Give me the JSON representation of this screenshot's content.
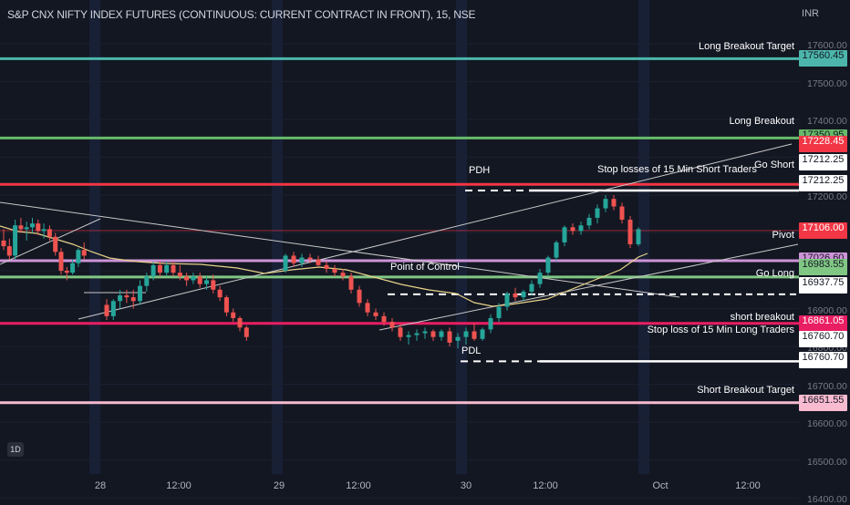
{
  "header": {
    "title": "S&P CNX NIFTY INDEX FUTURES (CONTINUOUS: CURRENT CONTRACT IN FRONT), 15, NSE",
    "currency": "INR",
    "interval_badge": "1D"
  },
  "chart_data": {
    "type": "candlestick",
    "y_axis": {
      "range": [
        16400,
        17650
      ],
      "ticks": [
        17600,
        17500,
        17400,
        17300,
        17200,
        17100,
        17000,
        16900,
        16800,
        16700,
        16600,
        16500,
        16400
      ],
      "tick_labels": [
        "17600.00",
        "17500.00",
        "17400.00",
        "17300.00",
        "17200.00",
        "17100.00",
        "17000.00",
        "16900.00",
        "16800.00",
        "16700.00",
        "16600.00",
        "16500.00",
        "16400.00"
      ]
    },
    "x_axis": {
      "labels": [
        "28",
        "12:00",
        "29",
        "12:00",
        "30",
        "12:00",
        "Oct",
        "12:00"
      ]
    },
    "colors": {
      "up": "#26a69a",
      "down": "#ef5350",
      "long_target": "#4db6ac",
      "long_breakout": "#66bb6a",
      "red_level": "#f23645",
      "pivot": "#ce93d8",
      "go_long": "#81c784",
      "short_breakout": "#e91e63",
      "short_target": "#f8bbd0",
      "vwap": "#e6d28a"
    },
    "candles": [
      [
        17080,
        17110,
        17055,
        17065
      ],
      [
        17065,
        17085,
        17030,
        17040
      ],
      [
        17040,
        17135,
        17030,
        17120
      ],
      [
        17120,
        17140,
        17100,
        17110
      ],
      [
        17110,
        17130,
        17080,
        17115
      ],
      [
        17115,
        17140,
        17100,
        17125
      ],
      [
        17125,
        17135,
        17095,
        17105
      ],
      [
        17105,
        17125,
        17085,
        17110
      ],
      [
        17110,
        17120,
        17080,
        17090
      ],
      [
        17090,
        17100,
        17040,
        17050
      ],
      [
        17050,
        17060,
        16990,
        17000
      ],
      [
        17000,
        17010,
        16975,
        16995
      ],
      [
        16995,
        17030,
        16990,
        17020
      ],
      [
        17020,
        17060,
        17010,
        17055
      ],
      [
        17055,
        17075,
        17030,
        17040
      ],
      [
        16910,
        16925,
        16870,
        16880
      ],
      [
        16880,
        16925,
        16870,
        16920
      ],
      [
        16920,
        16950,
        16900,
        16935
      ],
      [
        16935,
        16950,
        16915,
        16930
      ],
      [
        16930,
        16950,
        16900,
        16920
      ],
      [
        16920,
        16975,
        16910,
        16960
      ],
      [
        16960,
        16995,
        16945,
        16985
      ],
      [
        16985,
        17025,
        16975,
        17015
      ],
      [
        17015,
        17025,
        16985,
        16995
      ],
      [
        16995,
        17025,
        16985,
        17015
      ],
      [
        17015,
        17025,
        16985,
        16995
      ],
      [
        16995,
        17015,
        16975,
        16985
      ],
      [
        16985,
        16995,
        16960,
        16975
      ],
      [
        16975,
        16995,
        16965,
        16985
      ],
      [
        16985,
        16995,
        16955,
        16965
      ],
      [
        16965,
        16985,
        16950,
        16975
      ],
      [
        16975,
        16990,
        16940,
        16950
      ],
      [
        16950,
        16960,
        16920,
        16930
      ],
      [
        16930,
        16935,
        16880,
        16890
      ],
      [
        16890,
        16900,
        16865,
        16875
      ],
      [
        16875,
        16880,
        16840,
        16850
      ],
      [
        16850,
        16855,
        16815,
        16825
      ],
      [
        17000,
        17045,
        16995,
        17040
      ],
      [
        17040,
        17050,
        17010,
        17020
      ],
      [
        17020,
        17045,
        17010,
        17035
      ],
      [
        17035,
        17045,
        17020,
        17030
      ],
      [
        17030,
        17040,
        17010,
        17015
      ],
      [
        17015,
        17025,
        16995,
        17005
      ],
      [
        17005,
        17015,
        16985,
        16995
      ],
      [
        16995,
        17005,
        16975,
        16985
      ],
      [
        16985,
        16995,
        16940,
        16950
      ],
      [
        16950,
        16960,
        16905,
        16915
      ],
      [
        16915,
        16925,
        16880,
        16890
      ],
      [
        16890,
        16900,
        16870,
        16880
      ],
      [
        16880,
        16890,
        16855,
        16865
      ],
      [
        16865,
        16875,
        16840,
        16850
      ],
      [
        16850,
        16860,
        16815,
        16825
      ],
      [
        16825,
        16840,
        16805,
        16830
      ],
      [
        16830,
        16845,
        16815,
        16835
      ],
      [
        16835,
        16850,
        16820,
        16840
      ],
      [
        16840,
        16845,
        16815,
        16825
      ],
      [
        16825,
        16845,
        16815,
        16840
      ],
      [
        16840,
        16850,
        16800,
        16810
      ],
      [
        16815,
        16835,
        16795,
        16825
      ],
      [
        16825,
        16850,
        16805,
        16840
      ],
      [
        16840,
        16860,
        16815,
        16820
      ],
      [
        16820,
        16850,
        16815,
        16845
      ],
      [
        16845,
        16885,
        16835,
        16875
      ],
      [
        16875,
        16915,
        16865,
        16905
      ],
      [
        16905,
        16945,
        16895,
        16940
      ],
      [
        16940,
        16955,
        16920,
        16930
      ],
      [
        16930,
        16950,
        16920,
        16945
      ],
      [
        16945,
        16975,
        16935,
        16965
      ],
      [
        16965,
        17005,
        16955,
        16995
      ],
      [
        16995,
        17040,
        16985,
        17035
      ],
      [
        17035,
        17080,
        17025,
        17075
      ],
      [
        17075,
        17120,
        17065,
        17115
      ],
      [
        17115,
        17125,
        17095,
        17105
      ],
      [
        17105,
        17130,
        17095,
        17120
      ],
      [
        17120,
        17150,
        17110,
        17140
      ],
      [
        17140,
        17175,
        17125,
        17165
      ],
      [
        17165,
        17200,
        17155,
        17190
      ],
      [
        17190,
        17200,
        17160,
        17170
      ],
      [
        17170,
        17180,
        17125,
        17135
      ],
      [
        17135,
        17145,
        17060,
        17070
      ],
      [
        17070,
        17115,
        17065,
        17110
      ]
    ],
    "levels": [
      {
        "label": "Long Breakout Target",
        "price": 17560.45,
        "price_label": "17560.45",
        "color": "#4db6ac"
      },
      {
        "label": "Long Breakout",
        "price": 17350.95,
        "price_label": "17350.95",
        "color": "#66bb6a"
      },
      {
        "label": "",
        "price": 17228.45,
        "price_label": "17228.45",
        "color": "#f23645"
      },
      {
        "label": "Go Short",
        "price": 17212.25,
        "price_label": "17212.25",
        "color": "#ffffff"
      },
      {
        "label": "",
        "price": 17212.25,
        "price_label": "17212.25",
        "color": "#ffffff"
      },
      {
        "label": "",
        "price": 17106.0,
        "price_label": "17106.00",
        "color": "#f23645"
      },
      {
        "label": "Pivot",
        "price": 17026.6,
        "price_label": "17026.60",
        "color": "#ce93d8"
      },
      {
        "label": "",
        "price": 16983.55,
        "price_label": "16983.55",
        "color": "#81c784"
      },
      {
        "label": "Go Long",
        "price": 16937.75,
        "price_label": "16937.75",
        "color": "#ffffff"
      },
      {
        "label": "short breakout",
        "price": 16861.05,
        "price_label": "16861.05",
        "color": "#e91e63"
      },
      {
        "label": "Stop loss of 15 Min Long Traders",
        "price": 16760.7,
        "price_label": "16760.70",
        "color": "#ffffff"
      },
      {
        "label": "",
        "price": 16760.7,
        "price_label": "16760.70",
        "color": "#ffffff"
      },
      {
        "label": "Short  Breakout Target",
        "price": 16651.55,
        "price_label": "16651.55",
        "color": "#f8bbd0"
      }
    ],
    "annotations": {
      "pdh": "PDH",
      "pdl": "PDL",
      "poc": "Point of Control",
      "stop_short": "Stop losses of 15 Min Short Traders"
    }
  }
}
